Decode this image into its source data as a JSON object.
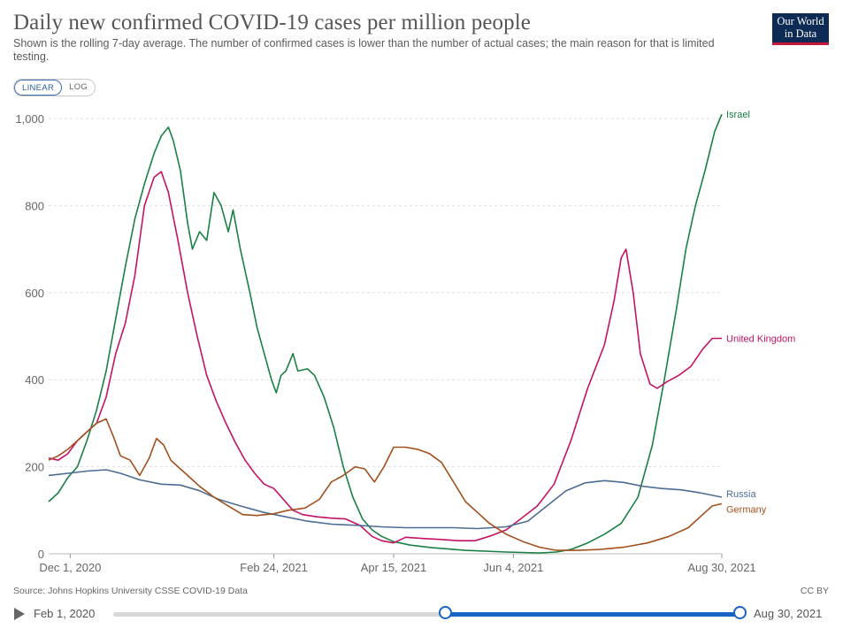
{
  "header": {
    "title": "Daily new confirmed COVID-19 cases per million people",
    "subtitle": "Shown is the rolling 7-day average. The number of confirmed cases is lower than the number of actual cases; the main reason for that is limited testing.",
    "logo_line1": "Our World",
    "logo_line2": "in Data"
  },
  "toggle": {
    "linear_label": "LINEAR",
    "log_label": "LOG",
    "active": "linear"
  },
  "footer": {
    "source": "Source: Johns Hopkins University CSSE COVID-19 Data",
    "license": "CC BY"
  },
  "timeline": {
    "start_label": "Feb 1, 2020",
    "end_label": "Aug 30, 2021",
    "selection_start_fraction": 0.529,
    "selection_end_fraction": 1.0
  },
  "colors": {
    "israel": "#1a8044",
    "uk": "#c31364",
    "russia": "#4d6c94",
    "germany": "#a3501d",
    "accent": "#1863c4",
    "grid": "#dddddd"
  },
  "chart_data": {
    "type": "line",
    "title": "Daily new confirmed COVID-19 cases per million people",
    "ylim": [
      0,
      1000
    ],
    "yticks": [
      0,
      200,
      400,
      600,
      800,
      1000
    ],
    "ytick_labels": [
      "0",
      "200",
      "400",
      "600",
      "800",
      "1,000"
    ],
    "xlim": [
      "2020-11-22",
      "2021-08-30"
    ],
    "xticks": [
      "2020-12-01",
      "2021-02-24",
      "2021-04-15",
      "2021-06-04",
      "2021-08-30"
    ],
    "xtick_labels": [
      "Dec 1, 2020",
      "Feb 24, 2021",
      "Apr 15, 2021",
      "Jun 4, 2021",
      "Aug 30, 2021"
    ],
    "grid": true,
    "legend": "line-end labels",
    "series": [
      {
        "name": "Israel",
        "points": [
          [
            "2020-11-22",
            120
          ],
          [
            "2020-11-26",
            140
          ],
          [
            "2020-11-30",
            175
          ],
          [
            "2020-12-04",
            200
          ],
          [
            "2020-12-08",
            260
          ],
          [
            "2020-12-12",
            330
          ],
          [
            "2020-12-16",
            420
          ],
          [
            "2020-12-20",
            540
          ],
          [
            "2020-12-24",
            660
          ],
          [
            "2020-12-28",
            770
          ],
          [
            "2021-01-01",
            850
          ],
          [
            "2021-01-05",
            920
          ],
          [
            "2021-01-08",
            960
          ],
          [
            "2021-01-11",
            980
          ],
          [
            "2021-01-13",
            950
          ],
          [
            "2021-01-16",
            880
          ],
          [
            "2021-01-19",
            760
          ],
          [
            "2021-01-21",
            700
          ],
          [
            "2021-01-24",
            740
          ],
          [
            "2021-01-27",
            720
          ],
          [
            "2021-01-30",
            830
          ],
          [
            "2021-02-02",
            800
          ],
          [
            "2021-02-05",
            740
          ],
          [
            "2021-02-07",
            790
          ],
          [
            "2021-02-10",
            700
          ],
          [
            "2021-02-14",
            600
          ],
          [
            "2021-02-17",
            520
          ],
          [
            "2021-02-20",
            460
          ],
          [
            "2021-02-23",
            400
          ],
          [
            "2021-02-25",
            370
          ],
          [
            "2021-02-27",
            410
          ],
          [
            "2021-03-01",
            420
          ],
          [
            "2021-03-04",
            460
          ],
          [
            "2021-03-06",
            420
          ],
          [
            "2021-03-10",
            425
          ],
          [
            "2021-03-13",
            410
          ],
          [
            "2021-03-17",
            360
          ],
          [
            "2021-03-21",
            290
          ],
          [
            "2021-03-25",
            200
          ],
          [
            "2021-03-29",
            130
          ],
          [
            "2021-04-02",
            80
          ],
          [
            "2021-04-06",
            55
          ],
          [
            "2021-04-10",
            40
          ],
          [
            "2021-04-15",
            28
          ],
          [
            "2021-04-22",
            20
          ],
          [
            "2021-05-01",
            14
          ],
          [
            "2021-05-15",
            8
          ],
          [
            "2021-06-01",
            4
          ],
          [
            "2021-06-15",
            2
          ],
          [
            "2021-06-22",
            4
          ],
          [
            "2021-06-28",
            10
          ],
          [
            "2021-07-05",
            25
          ],
          [
            "2021-07-12",
            45
          ],
          [
            "2021-07-19",
            70
          ],
          [
            "2021-07-26",
            130
          ],
          [
            "2021-08-01",
            250
          ],
          [
            "2021-08-06",
            400
          ],
          [
            "2021-08-11",
            560
          ],
          [
            "2021-08-15",
            700
          ],
          [
            "2021-08-19",
            800
          ],
          [
            "2021-08-23",
            880
          ],
          [
            "2021-08-27",
            970
          ],
          [
            "2021-08-30",
            1010
          ]
        ]
      },
      {
        "name": "United Kingdom",
        "points": [
          [
            "2020-11-22",
            220
          ],
          [
            "2020-11-26",
            215
          ],
          [
            "2020-11-30",
            230
          ],
          [
            "2020-12-04",
            260
          ],
          [
            "2020-12-08",
            280
          ],
          [
            "2020-12-12",
            300
          ],
          [
            "2020-12-16",
            360
          ],
          [
            "2020-12-20",
            460
          ],
          [
            "2020-12-24",
            530
          ],
          [
            "2020-12-28",
            640
          ],
          [
            "2021-01-01",
            800
          ],
          [
            "2021-01-05",
            865
          ],
          [
            "2021-01-08",
            878
          ],
          [
            "2021-01-11",
            830
          ],
          [
            "2021-01-15",
            720
          ],
          [
            "2021-01-19",
            600
          ],
          [
            "2021-01-23",
            500
          ],
          [
            "2021-01-27",
            410
          ],
          [
            "2021-01-31",
            350
          ],
          [
            "2021-02-04",
            300
          ],
          [
            "2021-02-08",
            255
          ],
          [
            "2021-02-12",
            215
          ],
          [
            "2021-02-16",
            185
          ],
          [
            "2021-02-20",
            160
          ],
          [
            "2021-02-24",
            150
          ],
          [
            "2021-02-28",
            125
          ],
          [
            "2021-03-04",
            100
          ],
          [
            "2021-03-08",
            90
          ],
          [
            "2021-03-14",
            85
          ],
          [
            "2021-03-20",
            82
          ],
          [
            "2021-03-26",
            80
          ],
          [
            "2021-04-01",
            65
          ],
          [
            "2021-04-06",
            40
          ],
          [
            "2021-04-10",
            30
          ],
          [
            "2021-04-15",
            25
          ],
          [
            "2021-04-20",
            38
          ],
          [
            "2021-04-28",
            35
          ],
          [
            "2021-05-05",
            33
          ],
          [
            "2021-05-12",
            30
          ],
          [
            "2021-05-19",
            30
          ],
          [
            "2021-05-26",
            42
          ],
          [
            "2021-06-01",
            55
          ],
          [
            "2021-06-07",
            80
          ],
          [
            "2021-06-14",
            110
          ],
          [
            "2021-06-21",
            160
          ],
          [
            "2021-06-28",
            260
          ],
          [
            "2021-07-05",
            380
          ],
          [
            "2021-07-12",
            480
          ],
          [
            "2021-07-16",
            580
          ],
          [
            "2021-07-19",
            680
          ],
          [
            "2021-07-21",
            700
          ],
          [
            "2021-07-24",
            600
          ],
          [
            "2021-07-27",
            460
          ],
          [
            "2021-07-31",
            390
          ],
          [
            "2021-08-03",
            380
          ],
          [
            "2021-08-07",
            395
          ],
          [
            "2021-08-12",
            410
          ],
          [
            "2021-08-17",
            430
          ],
          [
            "2021-08-22",
            470
          ],
          [
            "2021-08-26",
            495
          ],
          [
            "2021-08-30",
            495
          ]
        ]
      },
      {
        "name": "Russia",
        "points": [
          [
            "2020-11-22",
            180
          ],
          [
            "2020-11-30",
            185
          ],
          [
            "2020-12-08",
            190
          ],
          [
            "2020-12-16",
            193
          ],
          [
            "2020-12-22",
            185
          ],
          [
            "2020-12-30",
            170
          ],
          [
            "2021-01-08",
            160
          ],
          [
            "2021-01-16",
            158
          ],
          [
            "2021-01-24",
            145
          ],
          [
            "2021-02-01",
            125
          ],
          [
            "2021-02-10",
            110
          ],
          [
            "2021-02-20",
            95
          ],
          [
            "2021-03-01",
            85
          ],
          [
            "2021-03-10",
            75
          ],
          [
            "2021-03-20",
            68
          ],
          [
            "2021-04-01",
            65
          ],
          [
            "2021-04-10",
            62
          ],
          [
            "2021-04-20",
            60
          ],
          [
            "2021-05-01",
            60
          ],
          [
            "2021-05-10",
            60
          ],
          [
            "2021-05-20",
            58
          ],
          [
            "2021-06-01",
            62
          ],
          [
            "2021-06-10",
            75
          ],
          [
            "2021-06-18",
            110
          ],
          [
            "2021-06-26",
            145
          ],
          [
            "2021-07-04",
            163
          ],
          [
            "2021-07-12",
            168
          ],
          [
            "2021-07-20",
            164
          ],
          [
            "2021-07-28",
            155
          ],
          [
            "2021-08-05",
            150
          ],
          [
            "2021-08-13",
            147
          ],
          [
            "2021-08-21",
            140
          ],
          [
            "2021-08-30",
            130
          ]
        ]
      },
      {
        "name": "Germany",
        "points": [
          [
            "2020-11-22",
            215
          ],
          [
            "2020-11-26",
            225
          ],
          [
            "2020-11-30",
            240
          ],
          [
            "2020-12-04",
            260
          ],
          [
            "2020-12-08",
            280
          ],
          [
            "2020-12-12",
            300
          ],
          [
            "2020-12-16",
            310
          ],
          [
            "2020-12-19",
            270
          ],
          [
            "2020-12-22",
            225
          ],
          [
            "2020-12-26",
            215
          ],
          [
            "2020-12-30",
            180
          ],
          [
            "2021-01-03",
            220
          ],
          [
            "2021-01-06",
            265
          ],
          [
            "2021-01-09",
            250
          ],
          [
            "2021-01-12",
            215
          ],
          [
            "2021-01-15",
            200
          ],
          [
            "2021-01-19",
            180
          ],
          [
            "2021-01-24",
            155
          ],
          [
            "2021-01-30",
            130
          ],
          [
            "2021-02-05",
            110
          ],
          [
            "2021-02-11",
            90
          ],
          [
            "2021-02-17",
            88
          ],
          [
            "2021-02-24",
            92
          ],
          [
            "2021-03-02",
            100
          ],
          [
            "2021-03-09",
            105
          ],
          [
            "2021-03-15",
            125
          ],
          [
            "2021-03-20",
            165
          ],
          [
            "2021-03-25",
            180
          ],
          [
            "2021-03-30",
            200
          ],
          [
            "2021-04-03",
            195
          ],
          [
            "2021-04-07",
            165
          ],
          [
            "2021-04-11",
            200
          ],
          [
            "2021-04-15",
            245
          ],
          [
            "2021-04-20",
            245
          ],
          [
            "2021-04-25",
            240
          ],
          [
            "2021-04-30",
            230
          ],
          [
            "2021-05-05",
            210
          ],
          [
            "2021-05-10",
            165
          ],
          [
            "2021-05-15",
            120
          ],
          [
            "2021-05-20",
            95
          ],
          [
            "2021-05-25",
            70
          ],
          [
            "2021-06-01",
            45
          ],
          [
            "2021-06-08",
            28
          ],
          [
            "2021-06-15",
            15
          ],
          [
            "2021-06-22",
            8
          ],
          [
            "2021-07-01",
            8
          ],
          [
            "2021-07-10",
            10
          ],
          [
            "2021-07-20",
            15
          ],
          [
            "2021-07-30",
            25
          ],
          [
            "2021-08-08",
            40
          ],
          [
            "2021-08-16",
            60
          ],
          [
            "2021-08-22",
            90
          ],
          [
            "2021-08-26",
            110
          ],
          [
            "2021-08-30",
            115
          ]
        ]
      }
    ]
  }
}
